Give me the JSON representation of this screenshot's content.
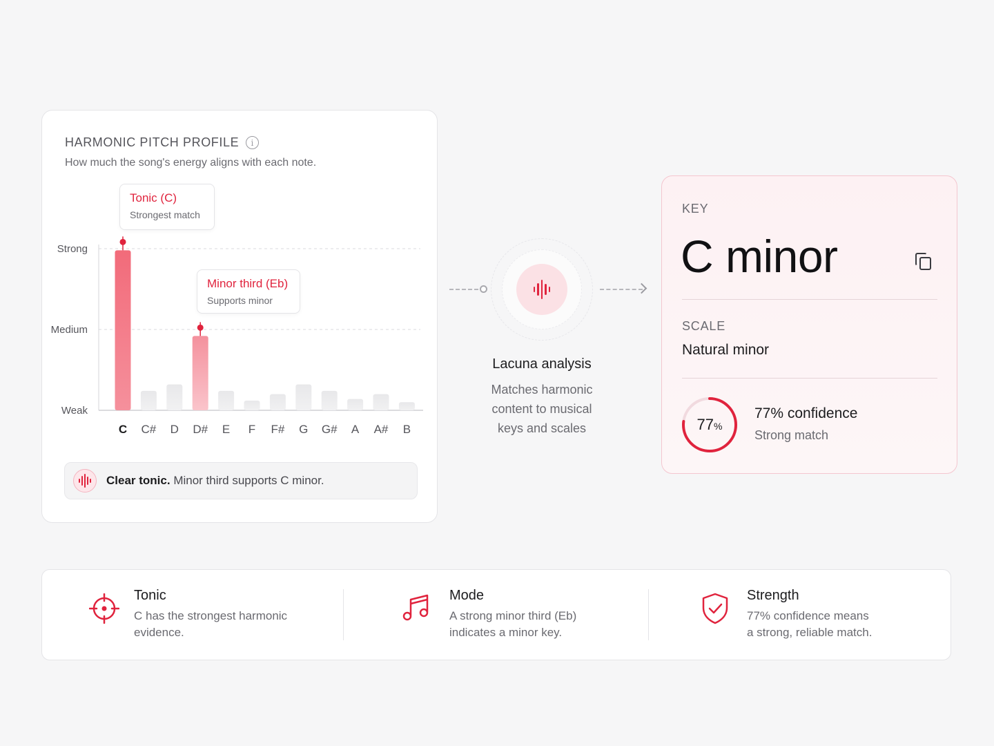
{
  "pitch_profile": {
    "title": "HARMONIC PITCH PROFILE",
    "info_glyph": "i",
    "subtitle": "How much the song's energy aligns with each note.",
    "callouts": {
      "tonic": {
        "title": "Tonic (C)",
        "sub": "Strongest match"
      },
      "minor_third": {
        "title": "Minor third (Eb)",
        "sub": "Supports minor"
      }
    },
    "summary": {
      "bold": "Clear tonic.",
      "rest": " Minor third supports C minor."
    }
  },
  "chart_data": {
    "type": "bar",
    "categories": [
      "C",
      "C#",
      "D",
      "D#",
      "E",
      "F",
      "F#",
      "G",
      "G#",
      "A",
      "A#",
      "B"
    ],
    "values": [
      0.99,
      0.12,
      0.16,
      0.46,
      0.12,
      0.06,
      0.1,
      0.16,
      0.12,
      0.07,
      0.1,
      0.05
    ],
    "y_levels": [
      {
        "label": "Weak",
        "value": 0
      },
      {
        "label": "Medium",
        "value": 0.5
      },
      {
        "label": "Strong",
        "value": 1
      }
    ],
    "highlighted": [
      "C",
      "D#"
    ],
    "ylim": [
      0,
      1
    ],
    "grid": true,
    "colors": {
      "strong": "#f2707e",
      "medium": "#f7a7b1",
      "weak": "#ebebed",
      "marker": "#e0233d"
    }
  },
  "analysis": {
    "title": "Lacuna analysis",
    "description_lines": [
      "Matches harmonic",
      "content to musical",
      "keys and scales"
    ]
  },
  "key_card": {
    "key_label": "KEY",
    "key_value": "C minor",
    "copy_icon": "copy-icon",
    "scale_label": "SCALE",
    "scale_value": "Natural minor",
    "confidence": {
      "percent_value": 0.77,
      "gauge_number": "77",
      "gauge_unit": "%",
      "title": "77% confidence",
      "sub": "Strong match"
    }
  },
  "info_strip": [
    {
      "icon": "target-icon",
      "title": "Tonic",
      "desc_lines": [
        "C has the strongest harmonic",
        "evidence."
      ]
    },
    {
      "icon": "music-note-icon",
      "title": "Mode",
      "desc_lines": [
        "A strong minor third (Eb)",
        "indicates a minor key."
      ]
    },
    {
      "icon": "shield-check-icon",
      "title": "Strength",
      "desc_lines": [
        "77% confidence means",
        "a strong, reliable match."
      ]
    }
  ],
  "colors": {
    "accent": "#e0233d",
    "accent_soft": "#fbe1e5",
    "key_card_border": "#f4c6cf"
  }
}
